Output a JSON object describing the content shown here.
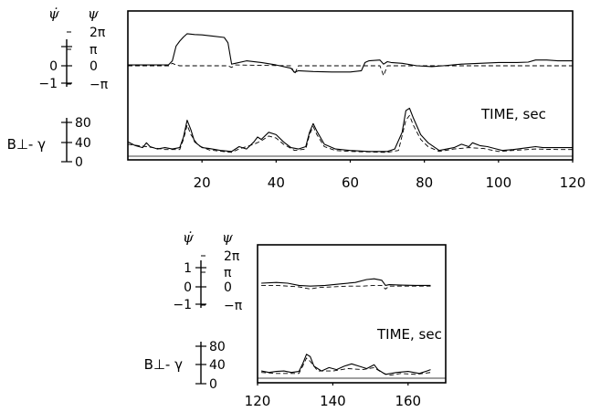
{
  "chart_data": [
    {
      "type": "line",
      "panel": "upper",
      "xlabel": "TIME, sec",
      "xlim": [
        0,
        120
      ],
      "x_ticks": [
        {
          "v": 20,
          "label": "20"
        },
        {
          "v": 40,
          "label": "40"
        },
        {
          "v": 60,
          "label": "60"
        },
        {
          "v": 80,
          "label": "80"
        },
        {
          "v": 100,
          "label": "100"
        },
        {
          "v": 120,
          "label": "120"
        }
      ],
      "psi_dot_axis": {
        "symbol": "ψ̇",
        "ticks": [
          {
            "v": 1,
            "label": ""
          },
          {
            "v": 0,
            "label": "0"
          },
          {
            "v": -1,
            "label": "−1"
          }
        ]
      },
      "psi_axis": {
        "symbol": "ψ",
        "ticks": [
          {
            "v": 2,
            "label": "2π"
          },
          {
            "v": 1,
            "label": "π"
          },
          {
            "v": 0,
            "label": "0"
          },
          {
            "v": -1,
            "label": "−π"
          }
        ]
      },
      "b_axis": {
        "label": "B⊥- γ",
        "ticks": [
          {
            "v": 80,
            "label": "80"
          },
          {
            "v": 40,
            "label": "40"
          },
          {
            "v": 0,
            "label": "0"
          }
        ]
      },
      "series": [
        {
          "role": "psi",
          "style": "solid",
          "points": [
            [
              0,
              0.05
            ],
            [
              5,
              0.05
            ],
            [
              11,
              0.06
            ],
            [
              12,
              0.3
            ],
            [
              13,
              1.2
            ],
            [
              14,
              1.5
            ],
            [
              15,
              1.75
            ],
            [
              16,
              1.95
            ],
            [
              18,
              1.9
            ],
            [
              20,
              1.88
            ],
            [
              23,
              1.8
            ],
            [
              26,
              1.72
            ],
            [
              27,
              1.4
            ],
            [
              28,
              0.1
            ],
            [
              29,
              0.15
            ],
            [
              32,
              0.3
            ],
            [
              36,
              0.2
            ],
            [
              40,
              0.05
            ],
            [
              44,
              -0.15
            ],
            [
              45,
              -0.4
            ],
            [
              46,
              -0.3
            ],
            [
              50,
              -0.35
            ],
            [
              55,
              -0.38
            ],
            [
              60,
              -0.38
            ],
            [
              63,
              -0.3
            ],
            [
              64,
              0.2
            ],
            [
              65,
              0.3
            ],
            [
              68,
              0.35
            ],
            [
              69,
              0.1
            ],
            [
              70,
              0.25
            ],
            [
              71,
              0.2
            ],
            [
              74,
              0.15
            ],
            [
              78,
              0.0
            ],
            [
              82,
              -0.05
            ],
            [
              85,
              0.0
            ],
            [
              90,
              0.1
            ],
            [
              95,
              0.15
            ],
            [
              100,
              0.2
            ],
            [
              105,
              0.2
            ],
            [
              108,
              0.22
            ],
            [
              110,
              0.35
            ],
            [
              113,
              0.35
            ],
            [
              116,
              0.3
            ],
            [
              120,
              0.3
            ]
          ]
        },
        {
          "role": "psi_dot",
          "style": "dashed",
          "points": [
            [
              0,
              0
            ],
            [
              11,
              0
            ],
            [
              12,
              0.15
            ],
            [
              13,
              0.05
            ],
            [
              14,
              0.0
            ],
            [
              27,
              0.0
            ],
            [
              28,
              -0.1
            ],
            [
              29,
              0.05
            ],
            [
              44,
              0.0
            ],
            [
              45,
              -0.5
            ],
            [
              46,
              0.0
            ],
            [
              68,
              0.0
            ],
            [
              69,
              -0.6
            ],
            [
              70,
              0.0
            ],
            [
              120,
              0.0
            ]
          ]
        },
        {
          "role": "B_perp_minus_gamma",
          "style": "solid",
          "points": [
            [
              0,
              30
            ],
            [
              2,
              22
            ],
            [
              4,
              18
            ],
            [
              5,
              28
            ],
            [
              6,
              20
            ],
            [
              8,
              15
            ],
            [
              10,
              18
            ],
            [
              12,
              15
            ],
            [
              14,
              18
            ],
            [
              15,
              40
            ],
            [
              16,
              75
            ],
            [
              17,
              55
            ],
            [
              18,
              30
            ],
            [
              20,
              18
            ],
            [
              22,
              16
            ],
            [
              25,
              12
            ],
            [
              28,
              10
            ],
            [
              30,
              20
            ],
            [
              32,
              15
            ],
            [
              34,
              30
            ],
            [
              35,
              40
            ],
            [
              36,
              35
            ],
            [
              38,
              50
            ],
            [
              40,
              45
            ],
            [
              42,
              30
            ],
            [
              44,
              18
            ],
            [
              46,
              15
            ],
            [
              48,
              20
            ],
            [
              49,
              50
            ],
            [
              50,
              68
            ],
            [
              51,
              52
            ],
            [
              53,
              25
            ],
            [
              56,
              15
            ],
            [
              60,
              12
            ],
            [
              65,
              10
            ],
            [
              70,
              10
            ],
            [
              72,
              15
            ],
            [
              74,
              50
            ],
            [
              75,
              95
            ],
            [
              76,
              100
            ],
            [
              77,
              80
            ],
            [
              79,
              45
            ],
            [
              81,
              28
            ],
            [
              84,
              12
            ],
            [
              88,
              18
            ],
            [
              90,
              25
            ],
            [
              92,
              20
            ],
            [
              93,
              28
            ],
            [
              95,
              22
            ],
            [
              97,
              20
            ],
            [
              99,
              16
            ],
            [
              101,
              12
            ],
            [
              104,
              14
            ],
            [
              108,
              18
            ],
            [
              110,
              20
            ],
            [
              112,
              18
            ],
            [
              116,
              18
            ],
            [
              120,
              18
            ]
          ]
        },
        {
          "role": "B_perp_minus_gamma_ref",
          "style": "dashed",
          "points": [
            [
              0,
              25
            ],
            [
              5,
              20
            ],
            [
              10,
              14
            ],
            [
              14,
              14
            ],
            [
              15,
              35
            ],
            [
              16,
              65
            ],
            [
              17,
              45
            ],
            [
              19,
              22
            ],
            [
              22,
              13
            ],
            [
              28,
              8
            ],
            [
              30,
              15
            ],
            [
              34,
              25
            ],
            [
              36,
              32
            ],
            [
              38,
              42
            ],
            [
              40,
              38
            ],
            [
              42,
              25
            ],
            [
              45,
              12
            ],
            [
              48,
              15
            ],
            [
              49,
              45
            ],
            [
              50,
              62
            ],
            [
              51,
              45
            ],
            [
              53,
              20
            ],
            [
              56,
              12
            ],
            [
              60,
              10
            ],
            [
              70,
              8
            ],
            [
              73,
              12
            ],
            [
              75,
              75
            ],
            [
              76,
              85
            ],
            [
              77,
              65
            ],
            [
              79,
              35
            ],
            [
              81,
              20
            ],
            [
              84,
              10
            ],
            [
              88,
              15
            ],
            [
              92,
              18
            ],
            [
              96,
              16
            ],
            [
              100,
              10
            ],
            [
              104,
              12
            ],
            [
              110,
              15
            ],
            [
              116,
              14
            ],
            [
              120,
              14
            ]
          ]
        }
      ]
    },
    {
      "type": "line",
      "panel": "lower",
      "xlabel": "TIME, sec",
      "xlim": [
        120,
        170
      ],
      "x_ticks": [
        {
          "v": 120,
          "label": "120"
        },
        {
          "v": 140,
          "label": "140"
        },
        {
          "v": 160,
          "label": "160"
        }
      ],
      "psi_dot_axis": {
        "symbol": "ψ̇",
        "ticks": [
          {
            "v": 1,
            "label": "1"
          },
          {
            "v": 0,
            "label": "0"
          },
          {
            "v": -1,
            "label": "−1"
          }
        ]
      },
      "psi_axis": {
        "symbol": "ψ",
        "ticks": [
          {
            "v": 2,
            "label": "2π"
          },
          {
            "v": 1,
            "label": "π"
          },
          {
            "v": 0,
            "label": "0"
          },
          {
            "v": -1,
            "label": "−π"
          }
        ]
      },
      "b_axis": {
        "label": "B⊥- γ",
        "ticks": [
          {
            "v": 80,
            "label": "80"
          },
          {
            "v": 40,
            "label": "40"
          },
          {
            "v": 0,
            "label": "0"
          }
        ]
      },
      "series": [
        {
          "role": "psi",
          "style": "solid",
          "points": [
            [
              121,
              0.25
            ],
            [
              125,
              0.3
            ],
            [
              128,
              0.25
            ],
            [
              131,
              0.1
            ],
            [
              134,
              0.05
            ],
            [
              138,
              0.1
            ],
            [
              142,
              0.2
            ],
            [
              146,
              0.3
            ],
            [
              149,
              0.5
            ],
            [
              151,
              0.55
            ],
            [
              153,
              0.45
            ],
            [
              154,
              0.1
            ],
            [
              155,
              0.15
            ],
            [
              158,
              0.12
            ],
            [
              162,
              0.1
            ],
            [
              166,
              0.1
            ]
          ]
        },
        {
          "role": "psi_dot",
          "style": "dashed",
          "points": [
            [
              121,
              0.1
            ],
            [
              125,
              0.1
            ],
            [
              128,
              0.05
            ],
            [
              131,
              0.0
            ],
            [
              134,
              -0.15
            ],
            [
              136,
              -0.05
            ],
            [
              140,
              0.0
            ],
            [
              144,
              0.05
            ],
            [
              148,
              0.05
            ],
            [
              151,
              0.1
            ],
            [
              153,
              0.1
            ],
            [
              154,
              -0.15
            ],
            [
              155,
              0.05
            ],
            [
              160,
              0.05
            ],
            [
              166,
              0.05
            ]
          ]
        },
        {
          "role": "B_perp_minus_gamma",
          "style": "solid",
          "points": [
            [
              121,
              15
            ],
            [
              123,
              12
            ],
            [
              125,
              14
            ],
            [
              127,
              15
            ],
            [
              129,
              12
            ],
            [
              131,
              14
            ],
            [
              132,
              30
            ],
            [
              133,
              50
            ],
            [
              134,
              45
            ],
            [
              135,
              25
            ],
            [
              137,
              15
            ],
            [
              139,
              22
            ],
            [
              141,
              18
            ],
            [
              143,
              25
            ],
            [
              145,
              30
            ],
            [
              147,
              25
            ],
            [
              149,
              20
            ],
            [
              151,
              28
            ],
            [
              152,
              18
            ],
            [
              154,
              8
            ],
            [
              157,
              12
            ],
            [
              160,
              14
            ],
            [
              163,
              10
            ],
            [
              165,
              15
            ],
            [
              166,
              18
            ]
          ]
        },
        {
          "role": "B_perp_minus_gamma_ref",
          "style": "dashed",
          "points": [
            [
              121,
              12
            ],
            [
              125,
              10
            ],
            [
              129,
              10
            ],
            [
              131,
              10
            ],
            [
              132,
              25
            ],
            [
              133,
              42
            ],
            [
              134,
              35
            ],
            [
              136,
              15
            ],
            [
              140,
              15
            ],
            [
              144,
              20
            ],
            [
              148,
              18
            ],
            [
              151,
              22
            ],
            [
              153,
              12
            ],
            [
              155,
              6
            ],
            [
              158,
              10
            ],
            [
              162,
              8
            ],
            [
              166,
              12
            ]
          ]
        }
      ]
    }
  ]
}
